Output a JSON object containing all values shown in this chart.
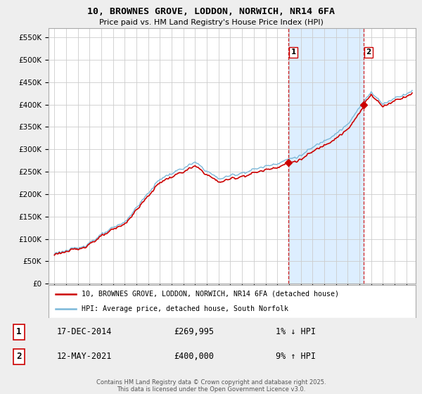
{
  "title": "10, BROWNES GROVE, LODDON, NORWICH, NR14 6FA",
  "subtitle": "Price paid vs. HM Land Registry's House Price Index (HPI)",
  "ylim": [
    0,
    570000
  ],
  "yticks": [
    0,
    50000,
    100000,
    150000,
    200000,
    250000,
    300000,
    350000,
    400000,
    450000,
    500000,
    550000
  ],
  "ytick_labels": [
    "£0",
    "£50K",
    "£100K",
    "£150K",
    "£200K",
    "£250K",
    "£300K",
    "£350K",
    "£400K",
    "£450K",
    "£500K",
    "£550K"
  ],
  "hpi_color": "#7ab8d9",
  "price_color": "#cc0000",
  "background_color": "#eeeeee",
  "plot_bg_color": "#ffffff",
  "shade_color": "#ddeeff",
  "grid_color": "#cccccc",
  "vline_color": "#cc0000",
  "t1": 2014.96,
  "t2": 2021.37,
  "p1": 269995,
  "p2": 400000,
  "legend_entry1": "10, BROWNES GROVE, LODDON, NORWICH, NR14 6FA (detached house)",
  "legend_entry2": "HPI: Average price, detached house, South Norfolk",
  "annotation1_label": "1",
  "annotation1_date": "17-DEC-2014",
  "annotation1_price": "£269,995",
  "annotation1_hpi": "1% ↓ HPI",
  "annotation2_label": "2",
  "annotation2_date": "12-MAY-2021",
  "annotation2_price": "£400,000",
  "annotation2_hpi": "9% ↑ HPI",
  "footer": "Contains HM Land Registry data © Crown copyright and database right 2025.\nThis data is licensed under the Open Government Licence v3.0.",
  "xmin": 1994.5,
  "xmax": 2025.8
}
